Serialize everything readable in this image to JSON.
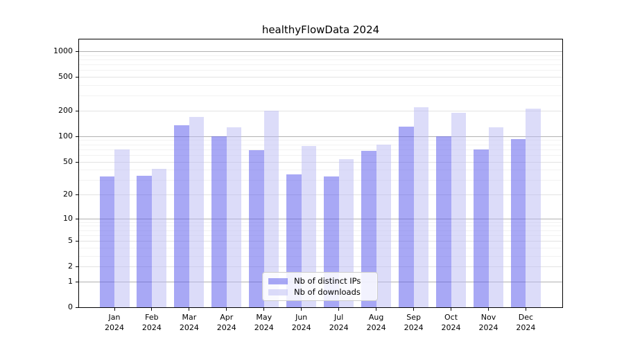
{
  "chart_data": {
    "type": "bar",
    "title": "healthyFlowData 2024",
    "categories": [
      "Jan 2024",
      "Feb 2024",
      "Mar 2024",
      "Apr 2024",
      "May 2024",
      "Jun 2024",
      "Jul 2024",
      "Aug 2024",
      "Sep 2024",
      "Oct 2024",
      "Nov 2024",
      "Dec 2024"
    ],
    "series": [
      {
        "name": "Nb of distinct IPs",
        "color": "rgba(88,88,236,0.52)",
        "values": [
          33,
          34,
          135,
          100,
          68,
          35,
          33,
          67,
          130,
          100,
          70,
          93
        ]
      },
      {
        "name": "Nb of downloads",
        "color": "rgba(185,185,243,0.5)",
        "values": [
          70,
          41,
          168,
          127,
          199,
          77,
          53,
          80,
          220,
          190,
          128,
          210
        ]
      }
    ],
    "xlabel": "",
    "ylabel": "",
    "yscale": "symlog (log1p)",
    "yticks": [
      0,
      1,
      2,
      5,
      10,
      20,
      50,
      100,
      200,
      500,
      1000
    ],
    "ylim": [
      0,
      1370
    ],
    "grid": true,
    "legend_position": "lower center inside plot"
  },
  "colors": {
    "grid_major": "#b0b0b0",
    "grid_mid": "#e2e2e2",
    "grid_minor": "#f2f2f2",
    "axis_border": "#000000",
    "background": "#ffffff",
    "legend_border": "#cccccc",
    "text": "#000000"
  }
}
